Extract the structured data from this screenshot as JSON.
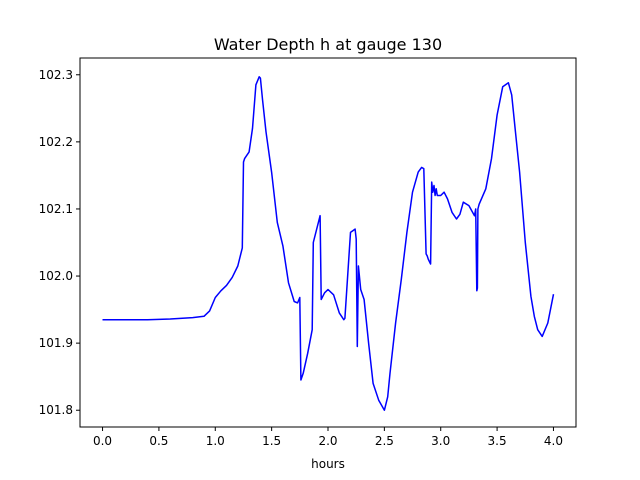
{
  "chart_data": {
    "type": "line",
    "title": "Water Depth h at gauge 130",
    "xlabel": "hours",
    "ylabel": "",
    "xlim": [
      -0.2,
      4.2
    ],
    "ylim": [
      101.775,
      102.325
    ],
    "xticks": [
      0.0,
      0.5,
      1.0,
      1.5,
      2.0,
      2.5,
      3.0,
      3.5,
      4.0
    ],
    "xtick_labels": [
      "0.0",
      "0.5",
      "1.0",
      "1.5",
      "2.0",
      "2.5",
      "3.0",
      "3.5",
      "4.0"
    ],
    "yticks": [
      101.8,
      101.9,
      102.0,
      102.1,
      102.2,
      102.3
    ],
    "ytick_labels": [
      "101.8",
      "101.9",
      "102.0",
      "102.1",
      "102.2",
      "102.3"
    ],
    "grid": false,
    "legend": "none",
    "series": [
      {
        "color": "#0000ff",
        "x": [
          0.0,
          0.2,
          0.4,
          0.6,
          0.8,
          0.9,
          0.95,
          1.0,
          1.05,
          1.1,
          1.15,
          1.2,
          1.24,
          1.25,
          1.26,
          1.3,
          1.33,
          1.36,
          1.39,
          1.4,
          1.42,
          1.45,
          1.5,
          1.55,
          1.6,
          1.65,
          1.7,
          1.73,
          1.75,
          1.76,
          1.78,
          1.82,
          1.86,
          1.87,
          1.9,
          1.93,
          1.94,
          1.97,
          2.0,
          2.05,
          2.1,
          2.14,
          2.15,
          2.2,
          2.24,
          2.25,
          2.26,
          2.27,
          2.29,
          2.32,
          2.36,
          2.4,
          2.45,
          2.5,
          2.53,
          2.55,
          2.6,
          2.65,
          2.7,
          2.75,
          2.8,
          2.83,
          2.85,
          2.87,
          2.88,
          2.89,
          2.91,
          2.92,
          2.93,
          2.94,
          2.95,
          2.96,
          2.97,
          3.0,
          3.03,
          3.06,
          3.1,
          3.14,
          3.17,
          3.2,
          3.25,
          3.3,
          3.31,
          3.32,
          3.325,
          3.33,
          3.34,
          3.4,
          3.45,
          3.5,
          3.55,
          3.6,
          3.63,
          3.66,
          3.7,
          3.75,
          3.8,
          3.83,
          3.86,
          3.9,
          3.95,
          4.0
        ],
        "y": [
          101.935,
          101.935,
          101.935,
          101.936,
          101.938,
          101.94,
          101.948,
          101.968,
          101.978,
          101.986,
          101.998,
          102.015,
          102.042,
          102.17,
          102.175,
          102.185,
          102.22,
          102.285,
          102.297,
          102.295,
          102.262,
          102.215,
          102.155,
          102.08,
          102.045,
          101.99,
          101.962,
          101.96,
          101.968,
          101.845,
          101.855,
          101.885,
          101.92,
          102.05,
          102.07,
          102.09,
          101.965,
          101.975,
          101.98,
          101.972,
          101.945,
          101.935,
          101.937,
          102.065,
          102.07,
          102.055,
          101.895,
          102.015,
          101.98,
          101.965,
          101.9,
          101.84,
          101.815,
          101.8,
          101.82,
          101.855,
          101.93,
          101.995,
          102.065,
          102.125,
          102.155,
          102.162,
          102.16,
          102.033,
          102.03,
          102.025,
          102.018,
          102.14,
          102.125,
          102.135,
          102.12,
          102.13,
          102.12,
          102.12,
          102.125,
          102.115,
          102.095,
          102.085,
          102.092,
          102.11,
          102.105,
          102.09,
          102.1,
          101.978,
          101.982,
          102.1,
          102.107,
          102.13,
          102.175,
          102.24,
          102.282,
          102.288,
          102.27,
          102.22,
          102.155,
          102.05,
          101.97,
          101.94,
          101.92,
          101.91,
          101.93,
          101.973
        ]
      }
    ]
  }
}
